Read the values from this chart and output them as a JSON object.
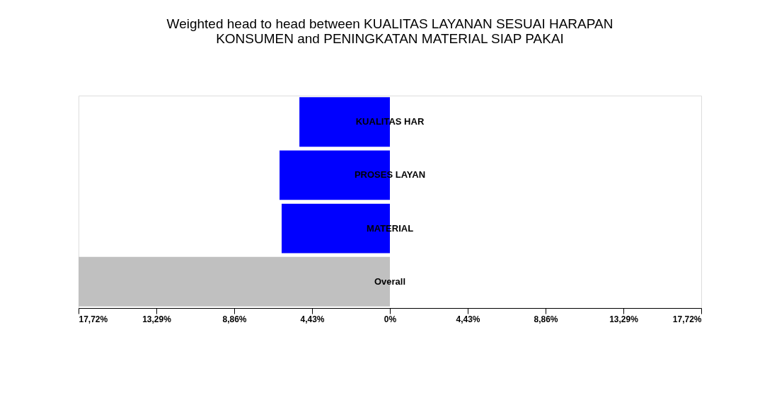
{
  "chart_data": {
    "type": "bar",
    "orientation": "horizontal",
    "title": [
      "Weighted head to head between KUALITAS LAYANAN SESUAI HARAPAN",
      "KONSUMEN and PENINGKATAN MATERIAL SIAP PAKAI"
    ],
    "categories": [
      "KUALITAS HAR",
      "PROSES LAYAN",
      "MATERIAL",
      "Overall"
    ],
    "values": [
      -5.15,
      -6.28,
      -6.16,
      -17.72
    ],
    "colors": [
      "#0000ff",
      "#0000ff",
      "#0000ff",
      "#c0c0c0"
    ],
    "xlim": [
      -17.72,
      17.72
    ],
    "xticks": [
      {
        "value": -17.72,
        "label": "17,72%"
      },
      {
        "value": -13.29,
        "label": "13,29%"
      },
      {
        "value": -8.86,
        "label": "8,86%"
      },
      {
        "value": -4.43,
        "label": "4,43%"
      },
      {
        "value": 0,
        "label": "0%"
      },
      {
        "value": 4.43,
        "label": "4,43%"
      },
      {
        "value": 8.86,
        "label": "8,86%"
      },
      {
        "value": 13.29,
        "label": "13,29%"
      },
      {
        "value": 17.72,
        "label": "17,72%"
      }
    ],
    "tick_labels": "x",
    "grid": false
  }
}
